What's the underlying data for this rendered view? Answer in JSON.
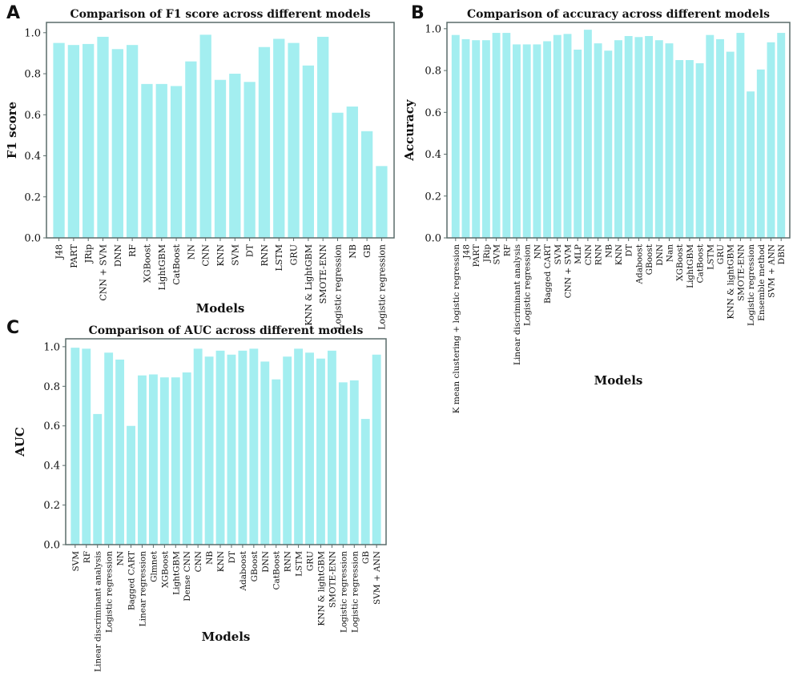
{
  "figure": {
    "panels": [
      {
        "letter": "A"
      },
      {
        "letter": "B"
      },
      {
        "letter": "C"
      }
    ]
  },
  "colors": {
    "bar": "#a3eef0",
    "frame": "#5a6c6a",
    "text": "#111111"
  },
  "chart_data": [
    {
      "type": "bar",
      "title": "Comparison of F1 score across different models",
      "xlabel": "Models",
      "ylabel": "F1 score",
      "ylim": [
        0,
        1.05
      ],
      "yticks": [
        "0.0",
        "0.2",
        "0.4",
        "0.6",
        "0.8",
        "1.0"
      ],
      "grid": false,
      "categories": [
        "J48",
        "PART",
        "JRip",
        "CNN + SVM",
        "DNN",
        "RF",
        "XGBoost",
        "LightGBM",
        "CatBoost",
        "NN",
        "CNN",
        "KNN",
        "SVM",
        "DT",
        "RNN",
        "LSTM",
        "GRU",
        "KNN & LightGBM",
        "SMOTE-ENN",
        "Logistic regression",
        "NB",
        "GB",
        "Logistic regression"
      ],
      "values": [
        0.95,
        0.94,
        0.945,
        0.98,
        0.92,
        0.94,
        0.75,
        0.75,
        0.74,
        0.86,
        0.99,
        0.77,
        0.8,
        0.76,
        0.93,
        0.97,
        0.95,
        0.84,
        0.98,
        0.61,
        0.64,
        0.52,
        0.35
      ]
    },
    {
      "type": "bar",
      "title": "Comparison of accuracy across different models",
      "xlabel": "Models",
      "ylabel": "Accuracy",
      "ylim": [
        0,
        1.03
      ],
      "yticks": [
        "0.0",
        "0.2",
        "0.4",
        "0.6",
        "0.8",
        "1.0"
      ],
      "grid": false,
      "categories": [
        "K mean clustering + logistic regression",
        "J48",
        "PART",
        "JRip",
        "SVM",
        "RF",
        "Linear discriminant analysis",
        "Logistic regression",
        "NN",
        "Bagged CART",
        "SVM",
        "CNN + SVM",
        "MLP",
        "CNN",
        "RNN",
        "NB",
        "KNN",
        "DT",
        "Adaboost",
        "GBoost",
        "DNN",
        "Nan",
        "XGBoost",
        "LightGBM",
        "CatBoost",
        "LSTM",
        "GRU",
        "KNN & lightGBM",
        "SMOTE-ENN",
        "Logistic regression",
        "Ensemble method",
        "SVM + ANN",
        "DBN"
      ],
      "values": [
        0.97,
        0.95,
        0.945,
        0.945,
        0.98,
        0.98,
        0.925,
        0.925,
        0.925,
        0.94,
        0.97,
        0.975,
        0.9,
        0.995,
        0.93,
        0.895,
        0.945,
        0.965,
        0.96,
        0.965,
        0.945,
        0.93,
        0.85,
        0.85,
        0.835,
        0.97,
        0.95,
        0.89,
        0.98,
        0.7,
        0.805,
        0.935,
        0.98
      ]
    },
    {
      "type": "bar",
      "title": "Comparison of AUC across different models",
      "xlabel": "Models",
      "ylabel": "AUC",
      "ylim": [
        0,
        1.04
      ],
      "yticks": [
        "0.0",
        "0.2",
        "0.4",
        "0.6",
        "0.8",
        "1.0"
      ],
      "grid": false,
      "categories": [
        "SVM",
        "RF",
        "Linear discriminant analysis",
        "Logistic regression",
        "NN",
        "Bagged CART",
        "Linear regression",
        "Glmnet",
        "XGBoost",
        "LightGBM",
        "Dense CNN",
        "CNN",
        "NB",
        "KNN",
        "DT",
        "Adaboost",
        "GBoost",
        "DNN",
        "CatBoost",
        "RNN",
        "LSTM",
        "GRU",
        "KNN & lightGBM",
        "SMOTE-ENN",
        "Logistic regression",
        "Logistic regression",
        "GB",
        "SVM + ANN"
      ],
      "values": [
        0.995,
        0.99,
        0.66,
        0.97,
        0.935,
        0.6,
        0.855,
        0.86,
        0.845,
        0.845,
        0.87,
        0.99,
        0.95,
        0.98,
        0.96,
        0.98,
        0.99,
        0.925,
        0.835,
        0.95,
        0.99,
        0.97,
        0.94,
        0.98,
        0.82,
        0.83,
        0.635,
        0.96
      ]
    }
  ]
}
